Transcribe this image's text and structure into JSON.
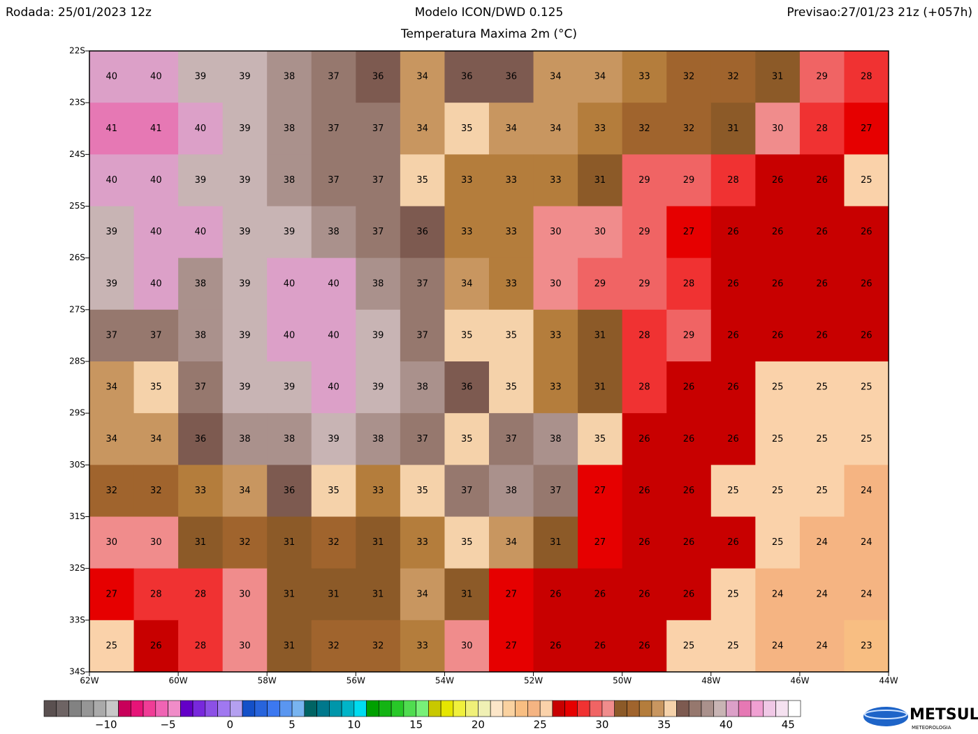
{
  "header": {
    "left": "Rodada: 25/01/2023 12z",
    "center": "Modelo ICON/DWD 0.125",
    "right": "Previsao:27/01/23 21z (+057h)",
    "subtitle": "Temperatura Maxima 2m (°C)"
  },
  "map": {
    "lat_labels": [
      "22S",
      "23S",
      "24S",
      "25S",
      "26S",
      "27S",
      "28S",
      "29S",
      "30S",
      "31S",
      "32S",
      "33S",
      "34S"
    ],
    "lon_labels": [
      "62W",
      "60W",
      "58W",
      "56W",
      "54W",
      "52W",
      "50W",
      "48W",
      "46W",
      "44W"
    ],
    "grid": [
      [
        40,
        40,
        39,
        39,
        38,
        37,
        36,
        34,
        36,
        36,
        34,
        34,
        33,
        32,
        32,
        31,
        29,
        28
      ],
      [
        41,
        41,
        40,
        39,
        38,
        37,
        37,
        34,
        35,
        34,
        34,
        33,
        32,
        32,
        31,
        30,
        28,
        27
      ],
      [
        40,
        40,
        39,
        39,
        38,
        37,
        37,
        35,
        33,
        33,
        33,
        31,
        29,
        29,
        28,
        26,
        26,
        25
      ],
      [
        39,
        40,
        40,
        39,
        39,
        38,
        37,
        36,
        33,
        33,
        30,
        30,
        29,
        27,
        26,
        26,
        26,
        26
      ],
      [
        39,
        40,
        38,
        39,
        40,
        40,
        38,
        37,
        34,
        33,
        30,
        29,
        29,
        28,
        26,
        26,
        26,
        26
      ],
      [
        37,
        37,
        38,
        39,
        40,
        40,
        39,
        37,
        35,
        35,
        33,
        31,
        28,
        29,
        26,
        26,
        26,
        26
      ],
      [
        34,
        35,
        37,
        39,
        39,
        40,
        39,
        38,
        36,
        35,
        33,
        31,
        28,
        26,
        26,
        25,
        25,
        25
      ],
      [
        34,
        34,
        36,
        38,
        38,
        39,
        38,
        37,
        35,
        37,
        38,
        35,
        26,
        26,
        26,
        25,
        25,
        25
      ],
      [
        32,
        32,
        33,
        34,
        36,
        35,
        33,
        35,
        37,
        38,
        37,
        27,
        26,
        26,
        25,
        25,
        25,
        24
      ],
      [
        30,
        30,
        31,
        32,
        31,
        32,
        31,
        33,
        35,
        34,
        31,
        27,
        26,
        26,
        26,
        25,
        24,
        24
      ],
      [
        27,
        28,
        28,
        30,
        31,
        31,
        31,
        34,
        31,
        27,
        26,
        26,
        26,
        26,
        25,
        24,
        24,
        24
      ],
      [
        25,
        26,
        28,
        30,
        31,
        32,
        32,
        33,
        30,
        27,
        26,
        26,
        26,
        25,
        25,
        24,
        24,
        23
      ]
    ]
  },
  "colorbar": {
    "colors": [
      "#5a5050",
      "#6e6464",
      "#828282",
      "#969696",
      "#aaaaaa",
      "#c8c8c8",
      "#c8005a",
      "#e61478",
      "#f03c96",
      "#f064b4",
      "#f08cc8",
      "#6400c8",
      "#7828dc",
      "#8c50e6",
      "#a078f0",
      "#b4a0f0",
      "#1450c8",
      "#2864dc",
      "#3c78f0",
      "#5a96f0",
      "#78b4f0",
      "#006464",
      "#00788c",
      "#0096aa",
      "#00b4c8",
      "#00dcf0",
      "#00a000",
      "#14b414",
      "#28c828",
      "#50dc50",
      "#78f078",
      "#c8c800",
      "#e6e600",
      "#f0f03c",
      "#f0f078",
      "#f0f0b4",
      "#fce6c8",
      "#fad2a0",
      "#f8be82",
      "#f5b482",
      "#fad2aa",
      "#c80000",
      "#e60000",
      "#f03232",
      "#f06464",
      "#f08c8c",
      "#8c5a28",
      "#a0642d",
      "#b47d3c",
      "#c89660",
      "#f5d2aa",
      "#7d5a50",
      "#96786e",
      "#aa918c",
      "#c8b4b4",
      "#dca0c8",
      "#e678b4",
      "#f0a0d2",
      "#f0c8e6",
      "#f5e1f0",
      "#ffffff"
    ],
    "ticks": [
      {
        "value": -10,
        "label": "−10"
      },
      {
        "value": -5,
        "label": "−5"
      },
      0,
      5,
      10,
      15,
      20,
      25,
      30,
      35,
      40,
      45
    ]
  },
  "logo": {
    "name": "METSUL",
    "tagline": "METEOROLOGIA"
  }
}
